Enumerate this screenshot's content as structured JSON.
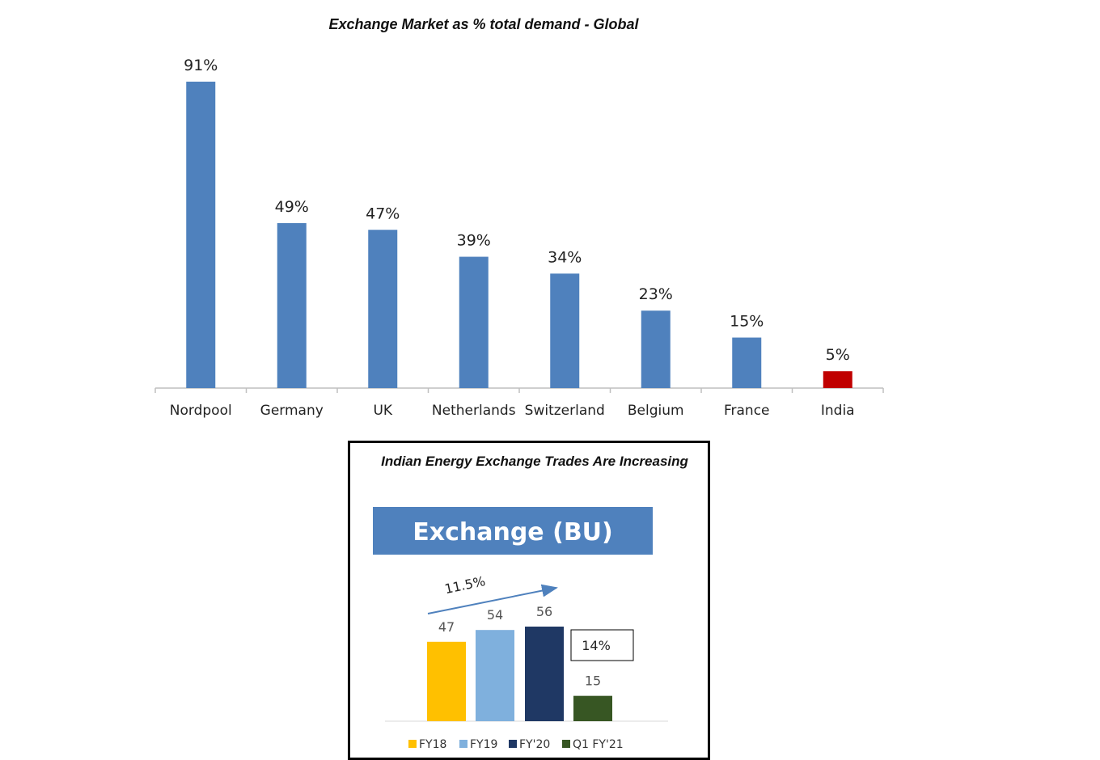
{
  "chart_data": [
    {
      "type": "bar",
      "title": "Exchange Market as % total demand - Global",
      "categories": [
        "Nordpool",
        "Germany",
        "UK",
        "Netherlands",
        "Switzerland",
        "Belgium",
        "France",
        "India"
      ],
      "values": [
        91,
        49,
        47,
        39,
        34,
        23,
        15,
        5
      ],
      "data_labels": [
        "91%",
        "49%",
        "47%",
        "39%",
        "34%",
        "23%",
        "15%",
        "5%"
      ],
      "ylim": [
        0,
        100
      ],
      "grid": false,
      "colors": {
        "default": "#4f81bd",
        "highlight": "#c00000",
        "highlight_category": "India"
      }
    },
    {
      "type": "bar",
      "title": "Indian Energy Exchange Trades Are Increasing",
      "subtitle": "Exchange (BU)",
      "categories": [
        "FY18",
        "FY19",
        "FY'20",
        "Q1 FY'21"
      ],
      "values": [
        47,
        54,
        56,
        15
      ],
      "data_labels": [
        "47",
        "54",
        "56",
        "15"
      ],
      "ylim": [
        0,
        60
      ],
      "grid": false,
      "legend": "bottom",
      "annotations": {
        "growth": "11.5%",
        "callout": "14%"
      },
      "colors": [
        "#ffc000",
        "#7fb0dd",
        "#1f3864",
        "#375623"
      ],
      "banner_color": "#4f81bd"
    }
  ]
}
